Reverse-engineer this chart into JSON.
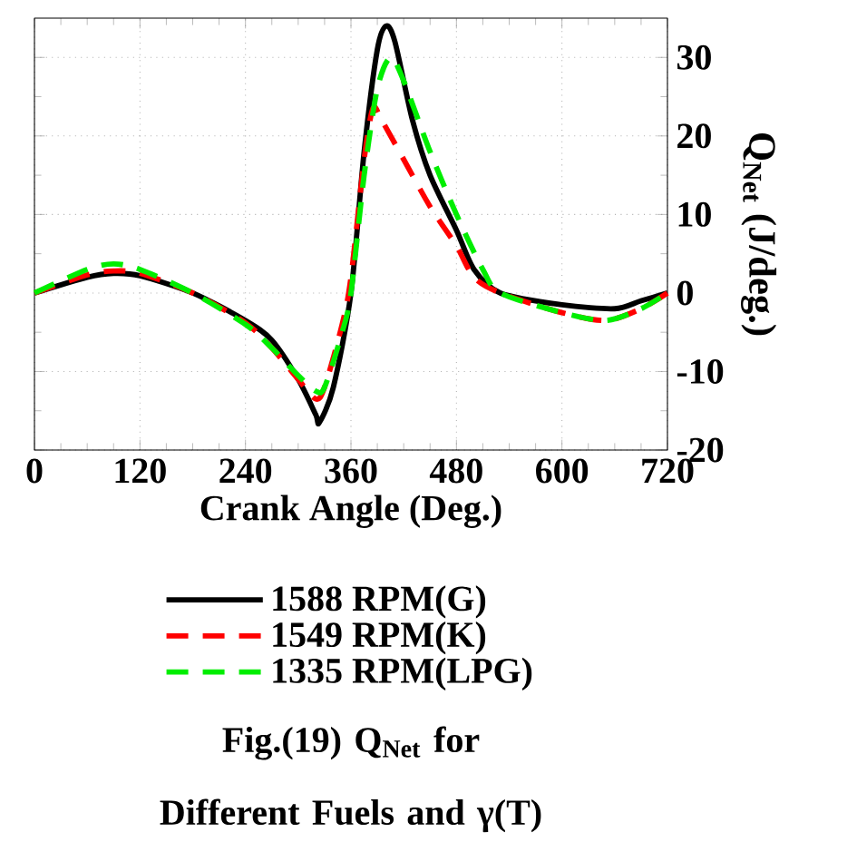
{
  "chart_data": {
    "type": "line",
    "xlabel": "Crank Angle     (Deg.)",
    "ylabel": "Q$_{Net}$  (J/deg.)",
    "xlim": [
      0,
      720
    ],
    "ylim": [
      -20,
      35
    ],
    "xticks": [
      0,
      120,
      240,
      360,
      480,
      600,
      720
    ],
    "yticks": [
      -20,
      -10,
      0,
      10,
      20,
      30
    ],
    "grid": true,
    "legend": "bottom",
    "series": [
      {
        "name": "1588 RPM(G)",
        "color": "#000000",
        "line_style": "solid",
        "x": [
          0,
          60,
          90,
          120,
          180,
          240,
          270,
          300,
          320,
          324,
          340,
          360,
          375,
          390,
          400,
          410,
          430,
          450,
          480,
          500,
          530,
          600,
          660,
          690,
          720
        ],
        "values": [
          0,
          2,
          2.5,
          2.2,
          0,
          -3.5,
          -6,
          -11,
          -15.5,
          -16.5,
          -12,
          0,
          18,
          31,
          34,
          32,
          22,
          15,
          8,
          3,
          0,
          -1.5,
          -2,
          -1,
          0
        ]
      },
      {
        "name": "1549 RPM(K)",
        "color": "#ff0000",
        "line_style": "dashed",
        "x": [
          0,
          60,
          90,
          120,
          180,
          240,
          270,
          300,
          320,
          330,
          350,
          360,
          375,
          385,
          395,
          420,
          450,
          480,
          500,
          530,
          600,
          650,
          690,
          720
        ],
        "values": [
          0,
          2.3,
          2.8,
          2.5,
          0,
          -3.8,
          -7,
          -11,
          -13.5,
          -12,
          -4,
          2,
          17,
          23.5,
          22,
          17,
          11,
          6,
          2,
          0,
          -2.5,
          -3.5,
          -2,
          0
        ]
      },
      {
        "name": "1335 RPM(LPG)",
        "color": "#00ee00",
        "line_style": "dashed",
        "x": [
          0,
          60,
          90,
          120,
          180,
          240,
          270,
          300,
          320,
          330,
          350,
          360,
          375,
          390,
          405,
          420,
          450,
          480,
          510,
          530,
          600,
          650,
          690,
          720
        ],
        "values": [
          0,
          3,
          3.7,
          3,
          0,
          -4,
          -7,
          -10.5,
          -12.5,
          -12,
          -5,
          0,
          15,
          26,
          30,
          27,
          18,
          10,
          3,
          0,
          -2.5,
          -3.5,
          -2,
          0
        ]
      }
    ],
    "annotations": [
      "Fig.(19) Q$_{Net}$ for Different Fuels and  γ(T)"
    ]
  }
}
